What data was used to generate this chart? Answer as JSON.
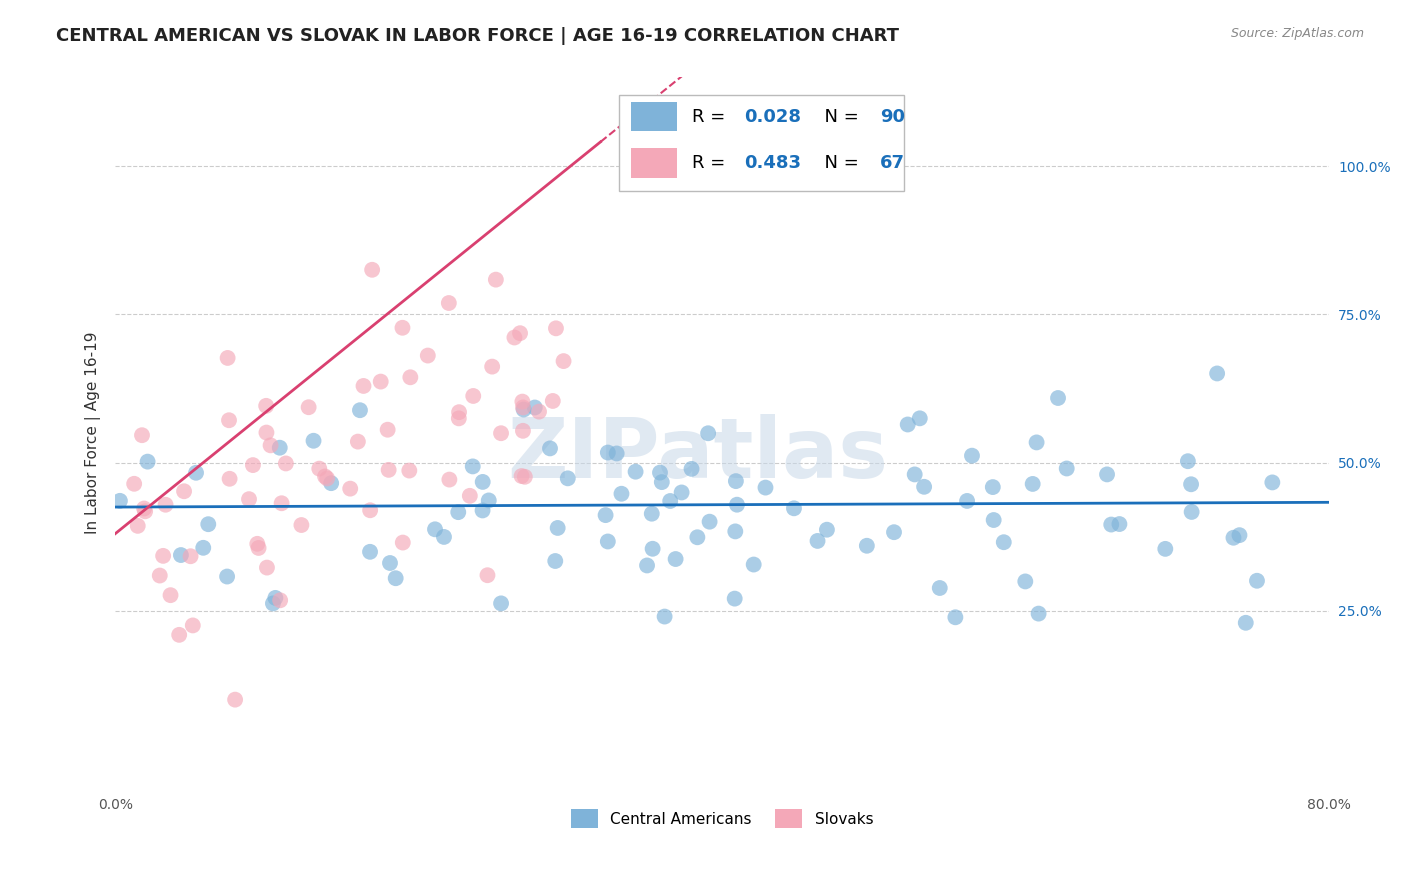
{
  "title": "CENTRAL AMERICAN VS SLOVAK IN LABOR FORCE | AGE 16-19 CORRELATION CHART",
  "source": "Source: ZipAtlas.com",
  "ylabel": "In Labor Force | Age 16-19",
  "xlim": [
    0.0,
    0.8
  ],
  "ylim": [
    -0.05,
    1.15
  ],
  "xticks": [
    0.0,
    0.1,
    0.2,
    0.3,
    0.4,
    0.5,
    0.6,
    0.7,
    0.8
  ],
  "xticklabels": [
    "0.0%",
    "",
    "",
    "",
    "",
    "",
    "",
    "",
    "80.0%"
  ],
  "ytick_positions": [
    0.25,
    0.5,
    0.75,
    1.0
  ],
  "ytick_labels": [
    "25.0%",
    "50.0%",
    "75.0%",
    "100.0%"
  ],
  "blue_color": "#7fb3d9",
  "pink_color": "#f4a8b8",
  "blue_line_color": "#1a6fba",
  "pink_line_color": "#d94070",
  "R_blue": 0.028,
  "N_blue": 90,
  "R_pink": 0.483,
  "N_pink": 67,
  "legend_label_blue": "Central Americans",
  "legend_label_pink": "Slovaks",
  "background_color": "#ffffff",
  "grid_color": "#cccccc",
  "watermark_text": "ZIPatlas",
  "title_fontsize": 13,
  "label_fontsize": 11,
  "tick_fontsize": 10,
  "source_fontsize": 9,
  "legend_fontsize": 11,
  "legend_inner_fontsize": 13
}
